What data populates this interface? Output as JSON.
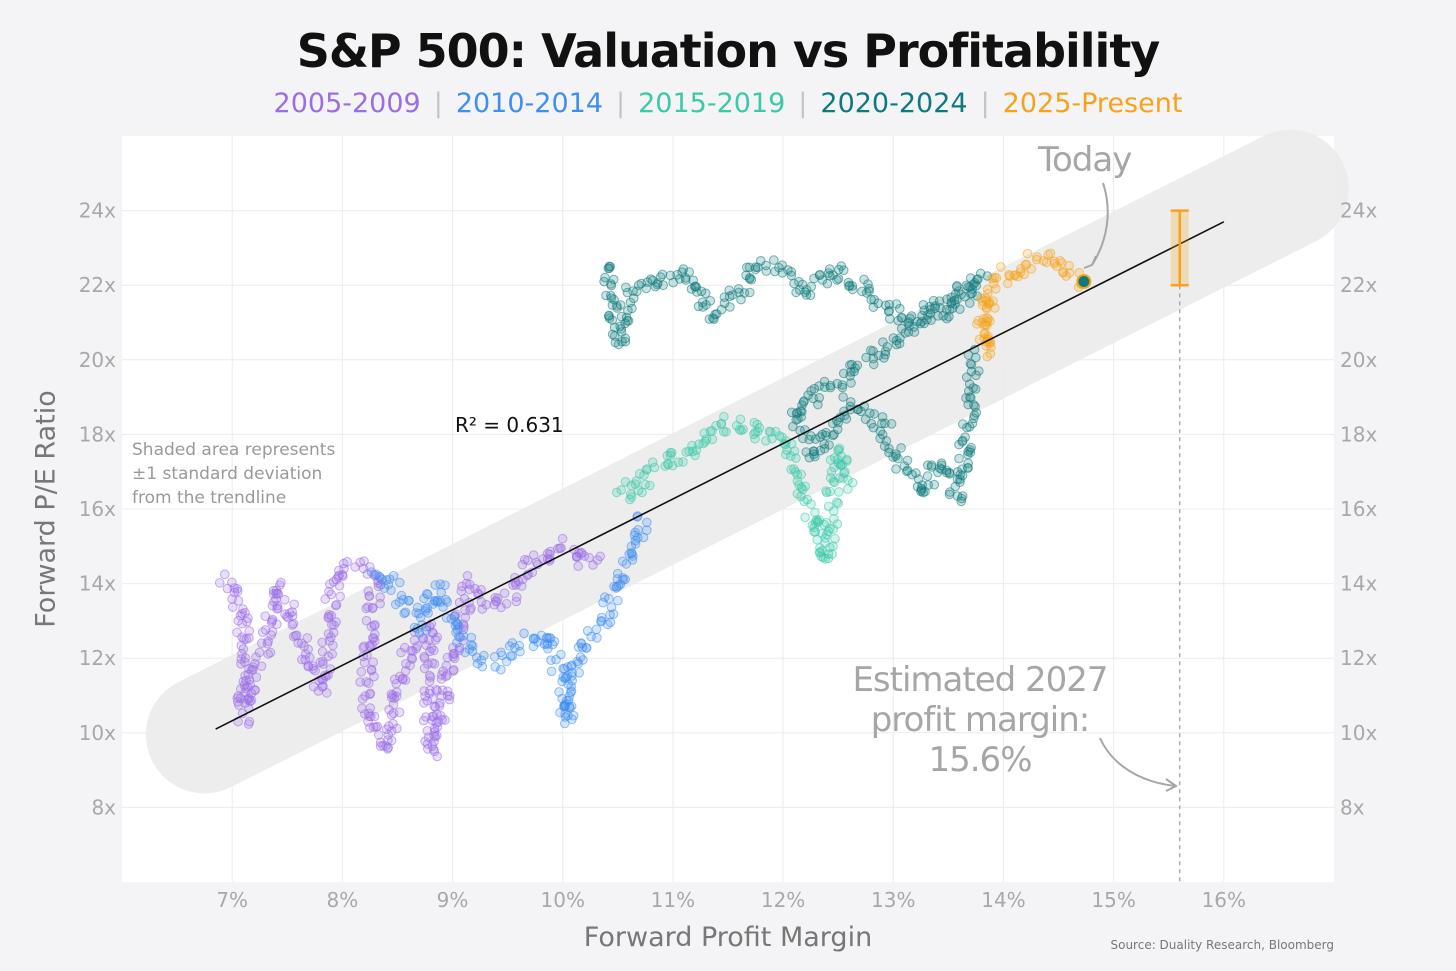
{
  "title": "S&P 500: Valuation vs Profitability",
  "legend": [
    {
      "label": "2005-2009",
      "color": "#9b6ee6"
    },
    {
      "label": "2010-2014",
      "color": "#3f8ef0"
    },
    {
      "label": "2015-2019",
      "color": "#3cc9a8"
    },
    {
      "label": "2020-2024",
      "color": "#0f7a7c"
    },
    {
      "label": "2025-Present",
      "color": "#f7a21b"
    }
  ],
  "annotations": {
    "r2": "R² = 0.631",
    "band_note": "Shaded area represents ±1 standard deviation from the trendline",
    "today": "Today",
    "estimate_line1": "Estimated 2027",
    "estimate_line2": "profit margin: 15.6%"
  },
  "source": "Source: Duality Research, Bloomberg",
  "chart_data": {
    "type": "scatter",
    "title": "S&P 500: Valuation vs Profitability",
    "xlabel": "Forward Profit Margin",
    "ylabel": "Forward P/E Ratio",
    "xlim": [
      6.0,
      17.0
    ],
    "ylim": [
      6.0,
      26.0
    ],
    "x_ticks": [
      7,
      8,
      9,
      10,
      11,
      12,
      13,
      14,
      15,
      16
    ],
    "x_tick_labels": [
      "7%",
      "8%",
      "9%",
      "10%",
      "11%",
      "12%",
      "13%",
      "14%",
      "15%",
      "16%"
    ],
    "y_ticks": [
      8,
      10,
      12,
      14,
      16,
      18,
      20,
      22,
      24
    ],
    "y_tick_labels": [
      "8x",
      "10x",
      "12x",
      "14x",
      "16x",
      "18x",
      "20x",
      "22x",
      "24x"
    ],
    "grid": true,
    "trendline": {
      "x": [
        6.85,
        16.0
      ],
      "y": [
        10.1,
        23.7
      ]
    },
    "std_band": 1.9,
    "today_point": {
      "x": 14.73,
      "y": 22.1
    },
    "estimate_marker": {
      "x": 15.6,
      "y_low": 22.0,
      "y_high": 24.0,
      "y_mid": 23.0
    },
    "series": [
      {
        "name": "2005-2009",
        "color": "#9b6ee6",
        "path": [
          [
            6.95,
            14.2
          ],
          [
            7.1,
            13.0
          ],
          [
            7.1,
            10.4
          ],
          [
            7.3,
            12.5
          ],
          [
            7.4,
            13.9
          ],
          [
            7.7,
            12.0
          ],
          [
            7.8,
            11.2
          ],
          [
            7.95,
            14.3
          ],
          [
            8.1,
            14.5
          ],
          [
            8.3,
            14.1
          ],
          [
            8.2,
            10.5
          ],
          [
            8.4,
            9.6
          ],
          [
            8.5,
            11.0
          ],
          [
            8.6,
            12.3
          ],
          [
            8.8,
            12.8
          ],
          [
            8.8,
            9.5
          ],
          [
            9.0,
            12.0
          ],
          [
            9.15,
            14.0
          ],
          [
            9.35,
            13.4
          ],
          [
            9.55,
            13.6
          ],
          [
            9.7,
            14.6
          ],
          [
            9.9,
            14.8
          ],
          [
            10.05,
            15.0
          ],
          [
            10.2,
            14.5
          ],
          [
            10.3,
            14.9
          ]
        ]
      },
      {
        "name": "2010-2014",
        "color": "#3f8ef0",
        "path": [
          [
            8.3,
            14.3
          ],
          [
            8.5,
            13.8
          ],
          [
            8.7,
            12.8
          ],
          [
            8.85,
            13.9
          ],
          [
            9.05,
            12.7
          ],
          [
            9.25,
            12.0
          ],
          [
            9.45,
            11.9
          ],
          [
            9.6,
            12.4
          ],
          [
            9.85,
            12.7
          ],
          [
            9.95,
            11.9
          ],
          [
            10.05,
            10.3
          ],
          [
            10.1,
            11.9
          ],
          [
            10.25,
            12.7
          ],
          [
            10.4,
            13.1
          ],
          [
            10.55,
            14.4
          ],
          [
            10.65,
            15.2
          ],
          [
            10.75,
            15.9
          ]
        ]
      },
      {
        "name": "2015-2019",
        "color": "#3cc9a8",
        "path": [
          [
            10.55,
            16.6
          ],
          [
            10.65,
            16.3
          ],
          [
            10.75,
            17.0
          ],
          [
            10.95,
            17.3
          ],
          [
            11.2,
            17.5
          ],
          [
            11.35,
            18.2
          ],
          [
            11.6,
            18.3
          ],
          [
            11.85,
            18.0
          ],
          [
            12.05,
            17.8
          ],
          [
            12.2,
            16.4
          ],
          [
            12.3,
            15.4
          ],
          [
            12.4,
            14.6
          ],
          [
            12.45,
            16.4
          ],
          [
            12.5,
            17.6
          ],
          [
            12.6,
            16.6
          ]
        ]
      },
      {
        "name": "2020-2024",
        "color": "#0f7a7c",
        "path": [
          [
            10.4,
            22.6
          ],
          [
            10.5,
            20.5
          ],
          [
            10.6,
            21.7
          ],
          [
            10.8,
            22.1
          ],
          [
            11.1,
            22.4
          ],
          [
            11.35,
            21.2
          ],
          [
            11.6,
            21.8
          ],
          [
            11.8,
            22.6
          ],
          [
            12.0,
            22.4
          ],
          [
            12.2,
            21.8
          ],
          [
            12.4,
            22.4
          ],
          [
            12.55,
            22.3
          ],
          [
            12.8,
            21.7
          ],
          [
            12.95,
            21.4
          ],
          [
            13.15,
            21.0
          ],
          [
            13.3,
            21.3
          ],
          [
            13.5,
            21.2
          ],
          [
            13.7,
            21.7
          ],
          [
            13.8,
            22.2
          ],
          [
            12.1,
            18.6
          ],
          [
            12.3,
            17.4
          ],
          [
            12.6,
            18.8
          ],
          [
            12.9,
            18.3
          ],
          [
            13.05,
            17.3
          ],
          [
            13.25,
            16.5
          ],
          [
            13.4,
            17.3
          ],
          [
            13.6,
            16.4
          ],
          [
            13.75,
            20.2
          ]
        ]
      },
      {
        "name": "2025-Present",
        "color": "#f7a21b",
        "path": [
          [
            13.8,
            21.6
          ],
          [
            13.85,
            20.2
          ],
          [
            13.9,
            21.8
          ],
          [
            14.0,
            22.3
          ],
          [
            14.15,
            22.2
          ],
          [
            14.3,
            22.8
          ],
          [
            14.45,
            22.6
          ],
          [
            14.6,
            22.3
          ],
          [
            14.73,
            22.1
          ]
        ]
      }
    ]
  }
}
